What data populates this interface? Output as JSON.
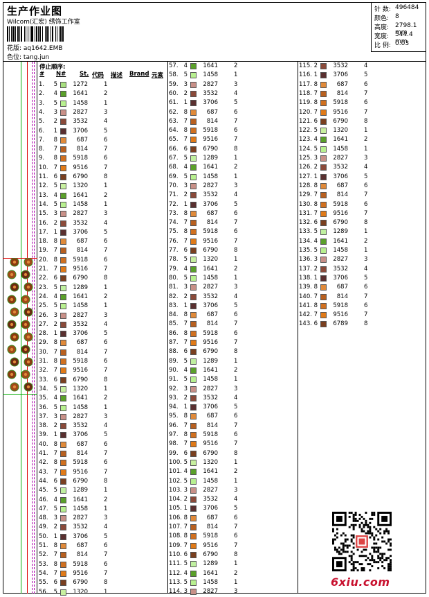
{
  "header": {
    "title": "生产作业图",
    "subtitle": "Wilcom(汇宏) 绣饰工作室",
    "design_label": "花版:",
    "design_value": "aq1642.EMB",
    "color_label": "色位:",
    "color_value": "tang.jun"
  },
  "stats": {
    "stitches_label": "针 数:",
    "stitches": "496484",
    "colors_label": "颜色:",
    "colors": "8",
    "height_label": "高度:",
    "height": "2798.1 mm",
    "width_label": "宽度:",
    "width": "544.4 mm",
    "scale_label": "比 例:",
    "scale": "0.03"
  },
  "stop_sequence_label": "停止顺序:",
  "columns": {
    "num": "#",
    "n": "N#",
    "st": "St.",
    "code": "代码",
    "desc": "描述",
    "brand": "Brand",
    "element": "元素"
  },
  "palette": {
    "1272": "#a8e080",
    "1641": "#5aa02a",
    "1458": "#b8f090",
    "3532": "#8a4a3a",
    "2827": "#c89088",
    "3706": "#5a3030",
    "687": "#e08a3a",
    "814": "#b86020",
    "5918": "#d07020",
    "9516": "#e07a18",
    "6790": "#7a4020",
    "1320": "#c8f0a0",
    "1289": "#c0f0a0",
    "6789": "#7a4020"
  },
  "rows": [
    {
      "n": "1.",
      "c": "5",
      "code": "1272",
      "st": "1"
    },
    {
      "n": "2.",
      "c": "4",
      "code": "1641",
      "st": "2"
    },
    {
      "n": "3.",
      "c": "5",
      "code": "1458",
      "st": "1"
    },
    {
      "n": "4.",
      "c": "3",
      "code": "2827",
      "st": "3"
    },
    {
      "n": "5.",
      "c": "2",
      "code": "3532",
      "st": "4"
    },
    {
      "n": "6.",
      "c": "1",
      "code": "3706",
      "st": "5"
    },
    {
      "n": "7.",
      "c": "8",
      "code": "687",
      "st": "6"
    },
    {
      "n": "8.",
      "c": "7",
      "code": "814",
      "st": "7"
    },
    {
      "n": "9.",
      "c": "8",
      "code": "5918",
      "st": "6"
    },
    {
      "n": "10.",
      "c": "7",
      "code": "9516",
      "st": "7"
    },
    {
      "n": "11.",
      "c": "6",
      "code": "6790",
      "st": "8"
    },
    {
      "n": "12.",
      "c": "5",
      "code": "1320",
      "st": "1"
    },
    {
      "n": "13.",
      "c": "4",
      "code": "1641",
      "st": "2"
    },
    {
      "n": "14.",
      "c": "5",
      "code": "1458",
      "st": "1"
    },
    {
      "n": "15.",
      "c": "3",
      "code": "2827",
      "st": "3"
    },
    {
      "n": "16.",
      "c": "2",
      "code": "3532",
      "st": "4"
    },
    {
      "n": "17.",
      "c": "1",
      "code": "3706",
      "st": "5"
    },
    {
      "n": "18.",
      "c": "8",
      "code": "687",
      "st": "6"
    },
    {
      "n": "19.",
      "c": "7",
      "code": "814",
      "st": "7"
    },
    {
      "n": "20.",
      "c": "8",
      "code": "5918",
      "st": "6"
    },
    {
      "n": "21.",
      "c": "7",
      "code": "9516",
      "st": "7"
    },
    {
      "n": "22.",
      "c": "6",
      "code": "6790",
      "st": "8"
    },
    {
      "n": "23.",
      "c": "5",
      "code": "1289",
      "st": "1"
    },
    {
      "n": "24.",
      "c": "4",
      "code": "1641",
      "st": "2"
    },
    {
      "n": "25.",
      "c": "5",
      "code": "1458",
      "st": "1"
    },
    {
      "n": "26.",
      "c": "3",
      "code": "2827",
      "st": "3"
    },
    {
      "n": "27.",
      "c": "2",
      "code": "3532",
      "st": "4"
    },
    {
      "n": "28.",
      "c": "1",
      "code": "3706",
      "st": "5"
    },
    {
      "n": "29.",
      "c": "8",
      "code": "687",
      "st": "6"
    },
    {
      "n": "30.",
      "c": "7",
      "code": "814",
      "st": "7"
    },
    {
      "n": "31.",
      "c": "8",
      "code": "5918",
      "st": "6"
    },
    {
      "n": "32.",
      "c": "7",
      "code": "9516",
      "st": "7"
    },
    {
      "n": "33.",
      "c": "6",
      "code": "6790",
      "st": "8"
    },
    {
      "n": "34.",
      "c": "5",
      "code": "1320",
      "st": "1"
    },
    {
      "n": "35.",
      "c": "4",
      "code": "1641",
      "st": "2"
    },
    {
      "n": "36.",
      "c": "5",
      "code": "1458",
      "st": "1"
    },
    {
      "n": "37.",
      "c": "3",
      "code": "2827",
      "st": "3"
    },
    {
      "n": "38.",
      "c": "2",
      "code": "3532",
      "st": "4"
    },
    {
      "n": "39.",
      "c": "1",
      "code": "3706",
      "st": "5"
    },
    {
      "n": "40.",
      "c": "8",
      "code": "687",
      "st": "6"
    },
    {
      "n": "41.",
      "c": "7",
      "code": "814",
      "st": "7"
    },
    {
      "n": "42.",
      "c": "8",
      "code": "5918",
      "st": "6"
    },
    {
      "n": "43.",
      "c": "7",
      "code": "9516",
      "st": "7"
    },
    {
      "n": "44.",
      "c": "6",
      "code": "6790",
      "st": "8"
    },
    {
      "n": "45.",
      "c": "5",
      "code": "1289",
      "st": "1"
    },
    {
      "n": "46.",
      "c": "4",
      "code": "1641",
      "st": "2"
    },
    {
      "n": "47.",
      "c": "5",
      "code": "1458",
      "st": "1"
    },
    {
      "n": "48.",
      "c": "3",
      "code": "2827",
      "st": "3"
    },
    {
      "n": "49.",
      "c": "2",
      "code": "3532",
      "st": "4"
    },
    {
      "n": "50.",
      "c": "1",
      "code": "3706",
      "st": "5"
    },
    {
      "n": "51.",
      "c": "8",
      "code": "687",
      "st": "6"
    },
    {
      "n": "52.",
      "c": "7",
      "code": "814",
      "st": "7"
    },
    {
      "n": "53.",
      "c": "8",
      "code": "5918",
      "st": "6"
    },
    {
      "n": "54.",
      "c": "7",
      "code": "9516",
      "st": "7"
    },
    {
      "n": "55.",
      "c": "6",
      "code": "6790",
      "st": "8"
    },
    {
      "n": "56.",
      "c": "5",
      "code": "1320",
      "st": "1"
    },
    {
      "n": "57.",
      "c": "4",
      "code": "1641",
      "st": "2"
    },
    {
      "n": "58.",
      "c": "5",
      "code": "1458",
      "st": "1"
    },
    {
      "n": "59.",
      "c": "3",
      "code": "2827",
      "st": "3"
    },
    {
      "n": "60.",
      "c": "2",
      "code": "3532",
      "st": "4"
    },
    {
      "n": "61.",
      "c": "1",
      "code": "3706",
      "st": "5"
    },
    {
      "n": "62.",
      "c": "8",
      "code": "687",
      "st": "6"
    },
    {
      "n": "63.",
      "c": "7",
      "code": "814",
      "st": "7"
    },
    {
      "n": "64.",
      "c": "8",
      "code": "5918",
      "st": "6"
    },
    {
      "n": "65.",
      "c": "7",
      "code": "9516",
      "st": "7"
    },
    {
      "n": "66.",
      "c": "6",
      "code": "6790",
      "st": "8"
    },
    {
      "n": "67.",
      "c": "5",
      "code": "1289",
      "st": "1"
    },
    {
      "n": "68.",
      "c": "4",
      "code": "1641",
      "st": "2"
    },
    {
      "n": "69.",
      "c": "5",
      "code": "1458",
      "st": "1"
    },
    {
      "n": "70.",
      "c": "3",
      "code": "2827",
      "st": "3"
    },
    {
      "n": "71.",
      "c": "2",
      "code": "3532",
      "st": "4"
    },
    {
      "n": "72.",
      "c": "1",
      "code": "3706",
      "st": "5"
    },
    {
      "n": "73.",
      "c": "8",
      "code": "687",
      "st": "6"
    },
    {
      "n": "74.",
      "c": "7",
      "code": "814",
      "st": "7"
    },
    {
      "n": "75.",
      "c": "8",
      "code": "5918",
      "st": "6"
    },
    {
      "n": "76.",
      "c": "7",
      "code": "9516",
      "st": "7"
    },
    {
      "n": "77.",
      "c": "6",
      "code": "6790",
      "st": "8"
    },
    {
      "n": "78.",
      "c": "5",
      "code": "1320",
      "st": "1"
    },
    {
      "n": "79.",
      "c": "4",
      "code": "1641",
      "st": "2"
    },
    {
      "n": "80.",
      "c": "5",
      "code": "1458",
      "st": "1"
    },
    {
      "n": "81.",
      "c": "3",
      "code": "2827",
      "st": "3"
    },
    {
      "n": "82.",
      "c": "2",
      "code": "3532",
      "st": "4"
    },
    {
      "n": "83.",
      "c": "1",
      "code": "3706",
      "st": "5"
    },
    {
      "n": "84.",
      "c": "8",
      "code": "687",
      "st": "6"
    },
    {
      "n": "85.",
      "c": "7",
      "code": "814",
      "st": "7"
    },
    {
      "n": "86.",
      "c": "8",
      "code": "5918",
      "st": "6"
    },
    {
      "n": "87.",
      "c": "7",
      "code": "9516",
      "st": "7"
    },
    {
      "n": "88.",
      "c": "6",
      "code": "6790",
      "st": "8"
    },
    {
      "n": "89.",
      "c": "5",
      "code": "1289",
      "st": "1"
    },
    {
      "n": "90.",
      "c": "4",
      "code": "1641",
      "st": "2"
    },
    {
      "n": "91.",
      "c": "5",
      "code": "1458",
      "st": "1"
    },
    {
      "n": "92.",
      "c": "3",
      "code": "2827",
      "st": "3"
    },
    {
      "n": "93.",
      "c": "2",
      "code": "3532",
      "st": "4"
    },
    {
      "n": "94.",
      "c": "1",
      "code": "3706",
      "st": "5"
    },
    {
      "n": "95.",
      "c": "8",
      "code": "687",
      "st": "6"
    },
    {
      "n": "96.",
      "c": "7",
      "code": "814",
      "st": "7"
    },
    {
      "n": "97.",
      "c": "8",
      "code": "5918",
      "st": "6"
    },
    {
      "n": "98.",
      "c": "7",
      "code": "9516",
      "st": "7"
    },
    {
      "n": "99.",
      "c": "6",
      "code": "6790",
      "st": "8"
    },
    {
      "n": "100.",
      "c": "5",
      "code": "1320",
      "st": "1"
    },
    {
      "n": "101.",
      "c": "4",
      "code": "1641",
      "st": "2"
    },
    {
      "n": "102.",
      "c": "5",
      "code": "1458",
      "st": "1"
    },
    {
      "n": "103.",
      "c": "3",
      "code": "2827",
      "st": "3"
    },
    {
      "n": "104.",
      "c": "2",
      "code": "3532",
      "st": "4"
    },
    {
      "n": "105.",
      "c": "1",
      "code": "3706",
      "st": "5"
    },
    {
      "n": "106.",
      "c": "8",
      "code": "687",
      "st": "6"
    },
    {
      "n": "107.",
      "c": "7",
      "code": "814",
      "st": "7"
    },
    {
      "n": "108.",
      "c": "8",
      "code": "5918",
      "st": "6"
    },
    {
      "n": "109.",
      "c": "7",
      "code": "9516",
      "st": "7"
    },
    {
      "n": "110.",
      "c": "6",
      "code": "6790",
      "st": "8"
    },
    {
      "n": "111.",
      "c": "5",
      "code": "1289",
      "st": "1"
    },
    {
      "n": "112.",
      "c": "4",
      "code": "1641",
      "st": "2"
    },
    {
      "n": "113.",
      "c": "5",
      "code": "1458",
      "st": "1"
    },
    {
      "n": "114.",
      "c": "3",
      "code": "2827",
      "st": "3"
    },
    {
      "n": "115.",
      "c": "2",
      "code": "3532",
      "st": "4"
    },
    {
      "n": "116.",
      "c": "1",
      "code": "3706",
      "st": "5"
    },
    {
      "n": "117.",
      "c": "8",
      "code": "687",
      "st": "6"
    },
    {
      "n": "118.",
      "c": "7",
      "code": "814",
      "st": "7"
    },
    {
      "n": "119.",
      "c": "8",
      "code": "5918",
      "st": "6"
    },
    {
      "n": "120.",
      "c": "7",
      "code": "9516",
      "st": "7"
    },
    {
      "n": "121.",
      "c": "6",
      "code": "6790",
      "st": "8"
    },
    {
      "n": "122.",
      "c": "5",
      "code": "1320",
      "st": "1"
    },
    {
      "n": "123.",
      "c": "4",
      "code": "1641",
      "st": "2"
    },
    {
      "n": "124.",
      "c": "5",
      "code": "1458",
      "st": "1"
    },
    {
      "n": "125.",
      "c": "3",
      "code": "2827",
      "st": "3"
    },
    {
      "n": "126.",
      "c": "2",
      "code": "3532",
      "st": "4"
    },
    {
      "n": "127.",
      "c": "1",
      "code": "3706",
      "st": "5"
    },
    {
      "n": "128.",
      "c": "8",
      "code": "687",
      "st": "6"
    },
    {
      "n": "129.",
      "c": "7",
      "code": "814",
      "st": "7"
    },
    {
      "n": "130.",
      "c": "8",
      "code": "5918",
      "st": "6"
    },
    {
      "n": "131.",
      "c": "7",
      "code": "9516",
      "st": "7"
    },
    {
      "n": "132.",
      "c": "6",
      "code": "6790",
      "st": "8"
    },
    {
      "n": "133.",
      "c": "5",
      "code": "1289",
      "st": "1"
    },
    {
      "n": "134.",
      "c": "4",
      "code": "1641",
      "st": "2"
    },
    {
      "n": "135.",
      "c": "5",
      "code": "1458",
      "st": "1"
    },
    {
      "n": "136.",
      "c": "3",
      "code": "2827",
      "st": "3"
    },
    {
      "n": "137.",
      "c": "2",
      "code": "3532",
      "st": "4"
    },
    {
      "n": "138.",
      "c": "1",
      "code": "3706",
      "st": "5"
    },
    {
      "n": "139.",
      "c": "8",
      "code": "687",
      "st": "6"
    },
    {
      "n": "140.",
      "c": "7",
      "code": "814",
      "st": "7"
    },
    {
      "n": "141.",
      "c": "8",
      "code": "5918",
      "st": "6"
    },
    {
      "n": "142.",
      "c": "7",
      "code": "9516",
      "st": "7"
    },
    {
      "n": "143.",
      "c": "6",
      "code": "6789",
      "st": "8"
    }
  ],
  "watermark": "6xiu.com"
}
